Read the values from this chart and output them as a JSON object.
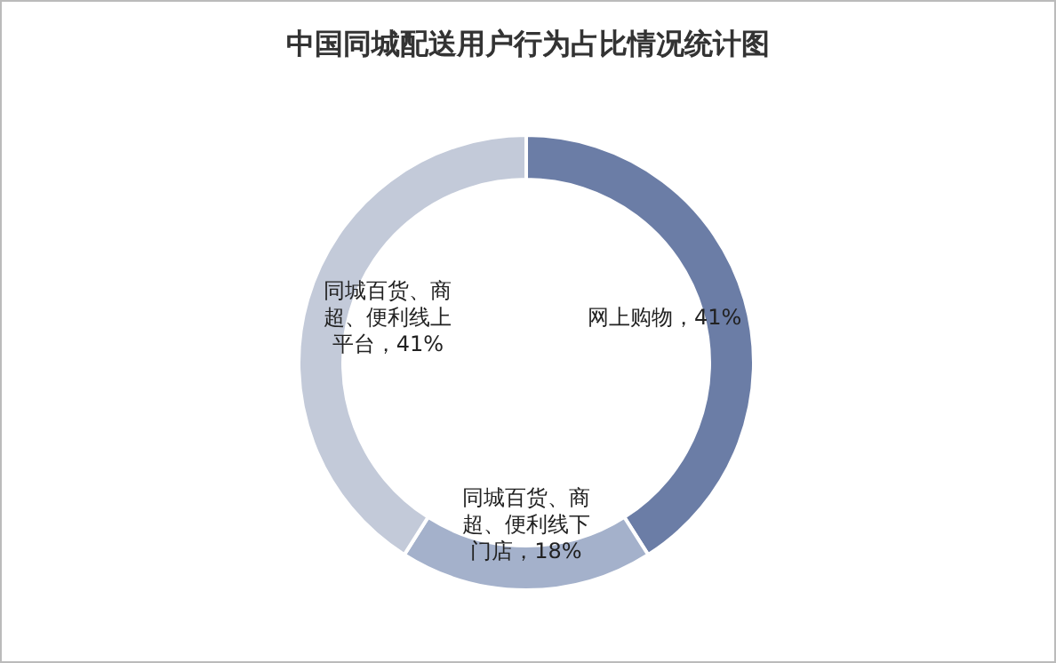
{
  "chart_data": {
    "type": "donut",
    "title": "中国同城配送用户行为占比情况统计图",
    "categories": [
      "网上购物",
      "同城百货、商超、便利线下门店",
      "同城百货、商超、便利线上平台"
    ],
    "values": [
      41,
      18,
      41
    ],
    "colors": [
      "#6b7da6",
      "#a4b1cb",
      "#c3cad9"
    ],
    "value_labels": [
      "41%",
      "18%",
      "41%"
    ]
  }
}
